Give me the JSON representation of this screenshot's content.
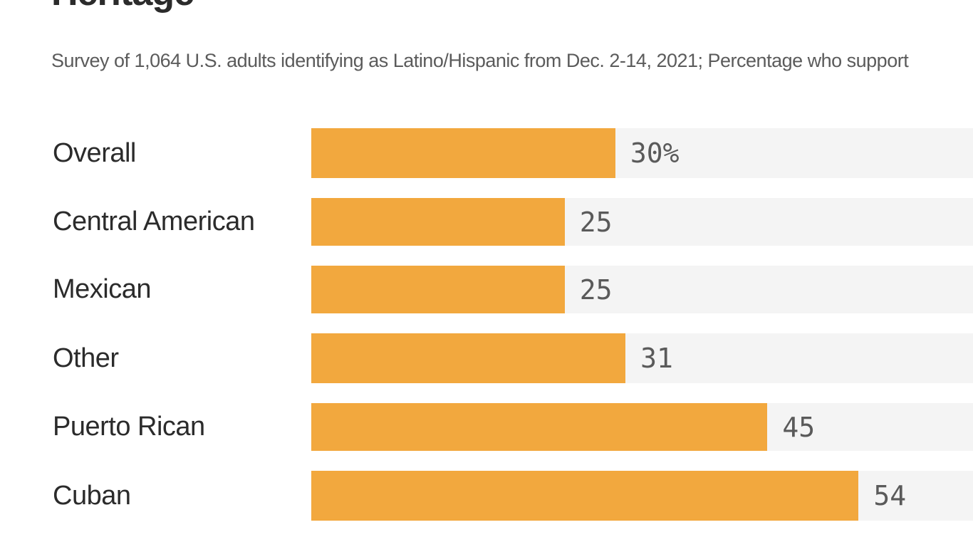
{
  "title": "Heritage",
  "subtitle": "Survey of 1,064 U.S. adults identifying as Latino/Hispanic from Dec. 2-14, 2021; Percentage who support",
  "colors": {
    "bar": "#f2a83e",
    "track": "#f4f4f4",
    "text": "#2b2b2b",
    "value_text": "#5a5a5a"
  },
  "chart_data": {
    "type": "bar",
    "orientation": "horizontal",
    "title": "Heritage",
    "subtitle": "Survey of 1,064 U.S. adults identifying as Latino/Hispanic from Dec. 2-14, 2021; Percentage who support",
    "categories": [
      "Overall",
      "Central American",
      "Mexican",
      "Other",
      "Puerto Rican",
      "Cuban"
    ],
    "values": [
      30,
      25,
      25,
      31,
      45,
      54
    ],
    "value_labels": [
      "30%",
      "25",
      "25",
      "31",
      "45",
      "54"
    ],
    "xlabel": "",
    "ylabel": "",
    "xlim": [
      0,
      100
    ],
    "grid": false,
    "legend": "none"
  }
}
